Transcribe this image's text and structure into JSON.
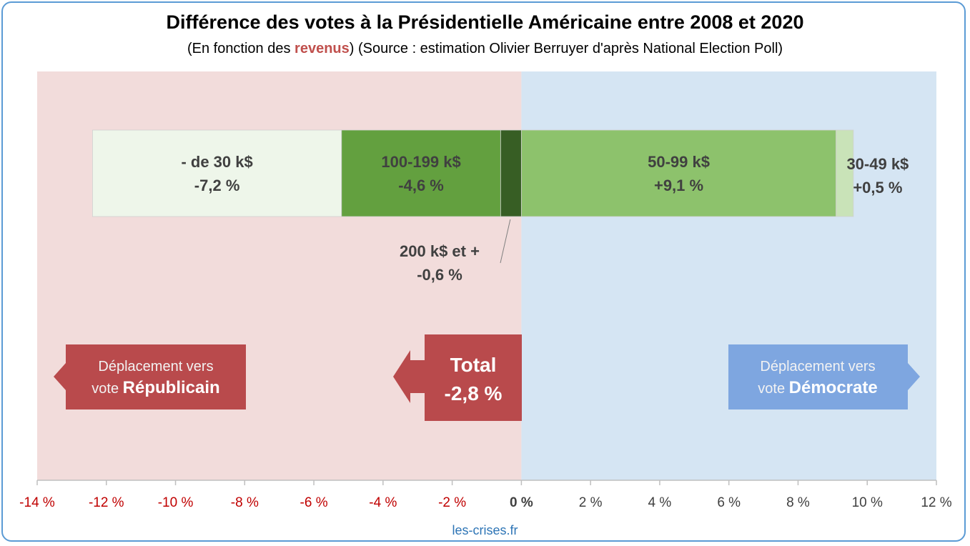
{
  "title": "Différence des votes à la Présidentielle Américaine entre 2008 et 2020",
  "subtitle": {
    "pre": "(En fonction des ",
    "highlight": "revenus",
    "post": ") (Source : estimation Olivier Berruyer d'après National Election Poll)"
  },
  "footer": "les-crises.fr",
  "colors": {
    "republican_bg": "#f2dcdb",
    "democrat_bg": "#d5e5f3",
    "republican_box": "#b94a4c",
    "democrat_box": "#7ea6e0",
    "negative_tick": "#c00000",
    "positive_tick": "#404040"
  },
  "chart_data": {
    "type": "bar",
    "orientation": "horizontal-stacked-waterfall",
    "xlim": [
      -14,
      12
    ],
    "x_ticks": [
      -14,
      -12,
      -10,
      -8,
      -6,
      -4,
      -2,
      0,
      2,
      4,
      6,
      8,
      10,
      12
    ],
    "tick_labels": [
      "-14 %",
      "-12 %",
      "-10 %",
      "-8 %",
      "-6 %",
      "-4 %",
      "-2 %",
      "0 %",
      "2 %",
      "4 %",
      "6 %",
      "8 %",
      "10 %",
      "12 %"
    ],
    "segments": [
      {
        "category": "- de 30 k$",
        "value": -7.2,
        "value_label": "-7,2 %",
        "start": -5.2,
        "end": -12.4,
        "color": "#eef6ea"
      },
      {
        "category": "100-199 k$",
        "value": -4.6,
        "value_label": "-4,6 %",
        "start": -0.6,
        "end": -5.2,
        "color": "#63a03f"
      },
      {
        "category": "200 k$ et +",
        "value": -0.6,
        "value_label": "-0,6 %",
        "start": 0,
        "end": -0.6,
        "color": "#375e24"
      },
      {
        "category": "50-99 k$",
        "value": 9.1,
        "value_label": "+9,1 %",
        "start": 0,
        "end": 9.1,
        "color": "#8dc26c"
      },
      {
        "category": "30-49 k$",
        "value": 0.5,
        "value_label": "+0,5 %",
        "start": 9.1,
        "end": 9.6,
        "color": "#c9e3b8"
      }
    ],
    "total": {
      "label": "Total",
      "value": -2.8,
      "value_label": "-2,8 %"
    },
    "annotations": {
      "republican": {
        "line1": "Déplacement vers",
        "line2_pre": "vote ",
        "line2_bold": "Républicain"
      },
      "democrat": {
        "line1": "Déplacement vers",
        "line2_pre": "vote ",
        "line2_bold": "Démocrate"
      }
    }
  }
}
